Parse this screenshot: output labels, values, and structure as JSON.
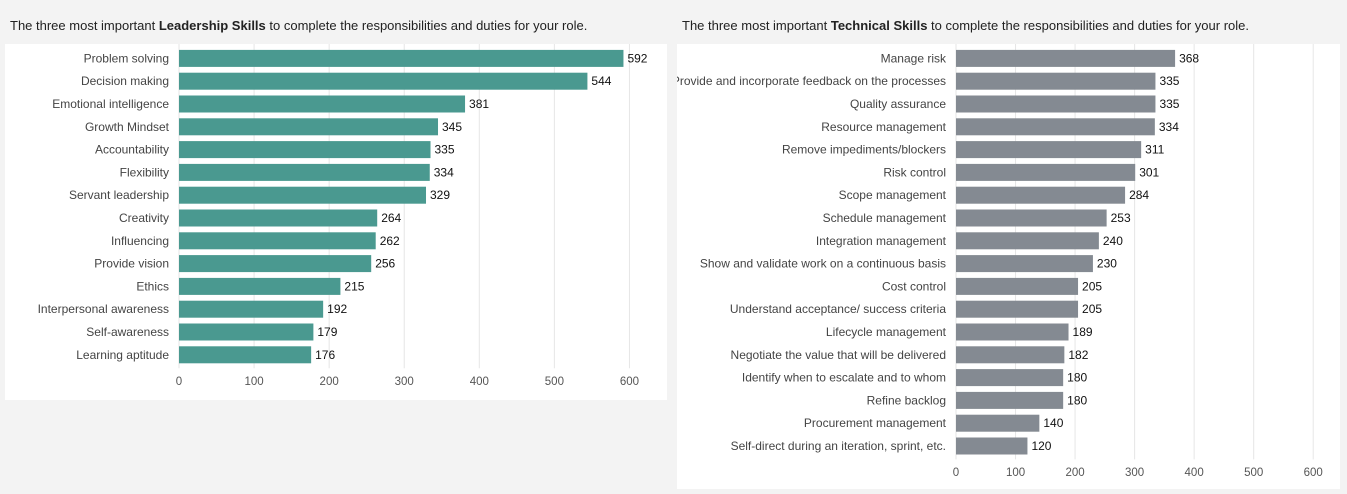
{
  "chart_data": [
    {
      "type": "bar",
      "orientation": "horizontal",
      "title_prefix": "The three most important ",
      "title_bold": "Leadership Skills",
      "title_suffix": " to complete the responsibilities and duties for your role.",
      "categories": [
        "Problem solving",
        "Decision making",
        "Emotional intelligence",
        "Growth Mindset",
        "Accountability",
        "Flexibility",
        "Servant leadership",
        "Creativity",
        "Influencing",
        "Provide vision",
        "Ethics",
        "Interpersonal awareness",
        "Self-awareness",
        "Learning aptitude"
      ],
      "values": [
        592,
        544,
        381,
        345,
        335,
        334,
        329,
        264,
        262,
        256,
        215,
        192,
        179,
        176
      ],
      "xlim": [
        0,
        650
      ],
      "ticks": [
        0,
        100,
        200,
        300,
        400,
        500,
        600
      ],
      "grid": true,
      "color": "#4a9990"
    },
    {
      "type": "bar",
      "orientation": "horizontal",
      "title_prefix": "The three most important ",
      "title_bold": "Technical Skills",
      "title_suffix": " to complete the responsibilities and duties for your role.",
      "categories": [
        "Manage risk",
        "Provide and incorporate feedback on the processes",
        "Quality assurance",
        "Resource management",
        "Remove impediments/blockers",
        "Risk control",
        "Scope management",
        "Schedule management",
        "Integration management",
        "Show and validate work on a continuous basis",
        "Cost control",
        "Understand acceptance/ success criteria",
        "Lifecycle management",
        "Negotiate the value that will be delivered",
        "Identify when to escalate and to whom",
        "Refine backlog",
        "Procurement management",
        "Self-direct during an iteration, sprint, etc."
      ],
      "values": [
        368,
        335,
        335,
        334,
        311,
        301,
        284,
        253,
        240,
        230,
        205,
        205,
        189,
        182,
        180,
        180,
        140,
        120
      ],
      "xlim": [
        0,
        645
      ],
      "ticks": [
        0,
        100,
        200,
        300,
        400,
        500,
        600
      ],
      "grid": true,
      "color": "#848a92"
    }
  ]
}
